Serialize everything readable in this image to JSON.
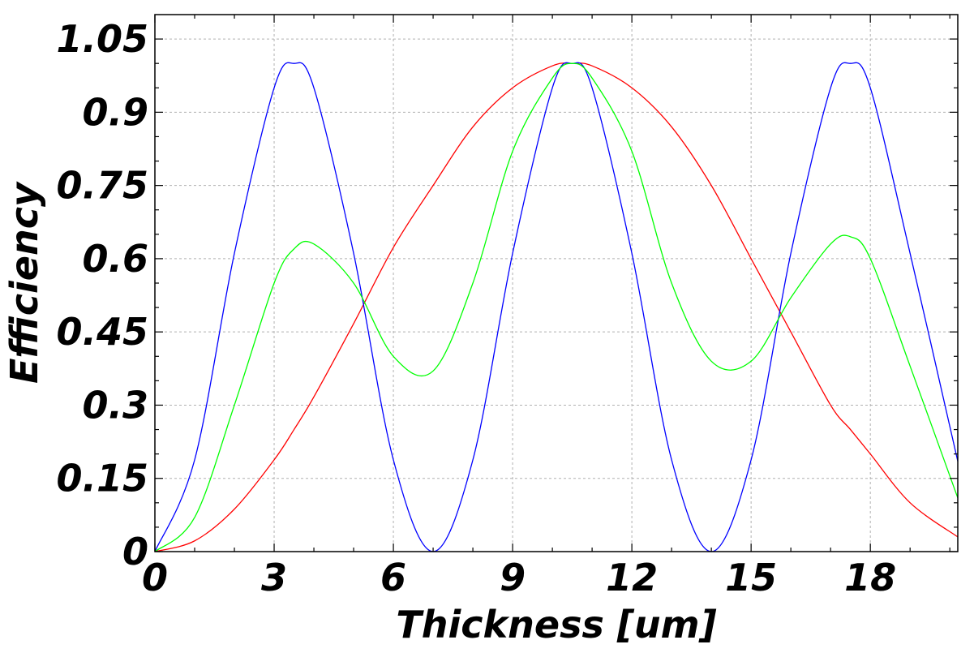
{
  "chart_data": {
    "type": "line",
    "xlabel": "Thickness [um]",
    "ylabel": "Efficiency",
    "xlim": [
      0,
      20.2
    ],
    "ylim": [
      0,
      1.1
    ],
    "xticks": [
      0,
      3,
      6,
      9,
      12,
      15,
      18
    ],
    "xtick_labels": [
      "0",
      "3",
      "6",
      "9",
      "12",
      "15",
      "18"
    ],
    "yticks": [
      0,
      0.15,
      0.3,
      0.45,
      0.6,
      0.75,
      0.9,
      1.05
    ],
    "ytick_labels": [
      "0",
      "0.15",
      "0.3",
      "0.45",
      "0.6",
      "0.75",
      "0.9",
      "1.05"
    ],
    "grid": true,
    "x_sample": [
      0,
      1,
      2,
      3,
      3.5,
      4,
      5,
      6,
      7,
      8,
      9,
      10,
      10.5,
      11,
      12,
      13,
      14,
      15,
      16,
      17,
      17.5,
      18,
      19,
      20.2
    ],
    "series": [
      {
        "color": "#ff0000",
        "values": [
          0,
          0.022,
          0.087,
          0.188,
          0.25,
          0.317,
          0.467,
          0.623,
          0.75,
          0.87,
          0.95,
          0.995,
          1.0,
          0.995,
          0.95,
          0.87,
          0.75,
          0.6,
          0.45,
          0.3,
          0.25,
          0.2,
          0.1,
          0.03
        ]
      },
      {
        "color": "#0000ff",
        "values": [
          0,
          0.188,
          0.611,
          0.95,
          1.0,
          0.95,
          0.611,
          0.188,
          0.0,
          0.188,
          0.611,
          0.95,
          1.0,
          0.95,
          0.611,
          0.188,
          0.0,
          0.188,
          0.611,
          0.95,
          1.0,
          0.95,
          0.611,
          0.185
        ]
      },
      {
        "color": "#00ff00",
        "values": [
          0,
          0.07,
          0.3,
          0.55,
          0.62,
          0.63,
          0.55,
          0.4,
          0.37,
          0.55,
          0.82,
          0.97,
          1.0,
          0.97,
          0.82,
          0.55,
          0.39,
          0.39,
          0.52,
          0.63,
          0.645,
          0.6,
          0.38,
          0.11
        ]
      }
    ]
  }
}
